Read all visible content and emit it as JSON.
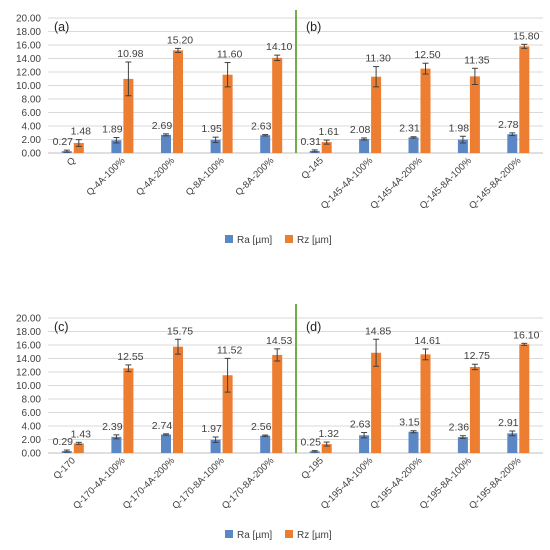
{
  "legend": {
    "ra_label": "Ra [µm]",
    "rz_label": "Rz [µm]"
  },
  "colors": {
    "ra": "#5b87c5",
    "rz": "#ed7d31",
    "divider": "#70ad47",
    "grid": "#d9d9d9",
    "error_bar": "#404040"
  },
  "chart_data": [
    {
      "type": "bar",
      "y_ticks": [
        "0.00",
        "2.00",
        "4.00",
        "6.00",
        "8.00",
        "10.00",
        "12.00",
        "14.00",
        "16.00",
        "18.00",
        "20.00"
      ],
      "ylim": [
        0,
        20
      ],
      "grid": true,
      "legend_position": "bottom",
      "subplots": [
        {
          "label": "(a)",
          "categories": [
            "Q",
            "Q-4A-100%",
            "Q-4A-200%",
            "Q-8A-100%",
            "Q-8A-200%"
          ],
          "series": [
            {
              "name": "Ra [µm]",
              "values": [
                0.27,
                1.89,
                2.69,
                1.95,
                2.63
              ],
              "labels": [
                "0.27",
                "1.89",
                "2.69",
                "1.95",
                "2.63"
              ],
              "errors": [
                0.15,
                0.4,
                0.15,
                0.4,
                0.1
              ]
            },
            {
              "name": "Rz [µm]",
              "values": [
                1.48,
                10.98,
                15.2,
                11.6,
                14.1
              ],
              "labels": [
                "1.48",
                "10.98",
                "15.20",
                "11.60",
                "14.10"
              ],
              "errors": [
                0.5,
                2.5,
                0.3,
                1.8,
                0.4
              ]
            }
          ]
        },
        {
          "label": "(b)",
          "categories": [
            "Q-145",
            "Q-145-4A-100%",
            "Q-145-4A-200%",
            "Q-145-8A-100%",
            "Q-145-8A-200%"
          ],
          "series": [
            {
              "name": "Ra [µm]",
              "values": [
                0.31,
                2.08,
                2.31,
                1.98,
                2.78
              ],
              "labels": [
                "0.31",
                "2.08",
                "2.31",
                "1.98",
                "2.78"
              ],
              "errors": [
                0.15,
                0.15,
                0.1,
                0.5,
                0.2
              ]
            },
            {
              "name": "Rz [µm]",
              "values": [
                1.61,
                11.3,
                12.5,
                11.35,
                15.8
              ],
              "labels": [
                "1.61",
                "11.30",
                "12.50",
                "11.35",
                "15.80"
              ],
              "errors": [
                0.3,
                1.5,
                0.8,
                1.2,
                0.3
              ]
            }
          ]
        }
      ]
    },
    {
      "type": "bar",
      "y_ticks": [
        "0.00",
        "2.00",
        "4.00",
        "6.00",
        "8.00",
        "10.00",
        "12.00",
        "14.00",
        "16.00",
        "18.00",
        "20.00"
      ],
      "ylim": [
        0,
        20
      ],
      "grid": true,
      "legend_position": "bottom",
      "subplots": [
        {
          "label": "(c)",
          "categories": [
            "Q-170",
            "Q-170-4A-100%",
            "Q-170-4A-200%",
            "Q-170-8A-100%",
            "Q-170-8A-200%"
          ],
          "series": [
            {
              "name": "Ra [µm]",
              "values": [
                0.29,
                2.39,
                2.74,
                1.97,
                2.56
              ],
              "labels": [
                "0.29",
                "2.39",
                "2.74",
                "1.97",
                "2.56"
              ],
              "errors": [
                0.15,
                0.3,
                0.1,
                0.4,
                0.1
              ]
            },
            {
              "name": "Rz [µm]",
              "values": [
                1.43,
                12.55,
                15.75,
                11.52,
                14.53
              ],
              "labels": [
                "1.43",
                "12.55",
                "15.75",
                "11.52",
                "14.53"
              ],
              "errors": [
                0.15,
                0.5,
                1.1,
                2.5,
                0.9
              ]
            }
          ]
        },
        {
          "label": "(d)",
          "categories": [
            "Q-195",
            "Q-195-4A-100%",
            "Q-195-4A-200%",
            "Q-195-8A-100%",
            "Q-195-8A-200%"
          ],
          "series": [
            {
              "name": "Ra [µm]",
              "values": [
                0.25,
                2.63,
                3.15,
                2.36,
                2.91
              ],
              "labels": [
                "0.25",
                "2.63",
                "3.15",
                "2.36",
                "2.91"
              ],
              "errors": [
                0.1,
                0.4,
                0.15,
                0.2,
                0.35
              ]
            },
            {
              "name": "Rz [µm]",
              "values": [
                1.32,
                14.85,
                14.61,
                12.75,
                16.1
              ],
              "labels": [
                "1.32",
                "14.85",
                "14.61",
                "12.75",
                "16.10"
              ],
              "errors": [
                0.3,
                2.0,
                0.8,
                0.4,
                0.15
              ]
            }
          ]
        }
      ]
    }
  ]
}
